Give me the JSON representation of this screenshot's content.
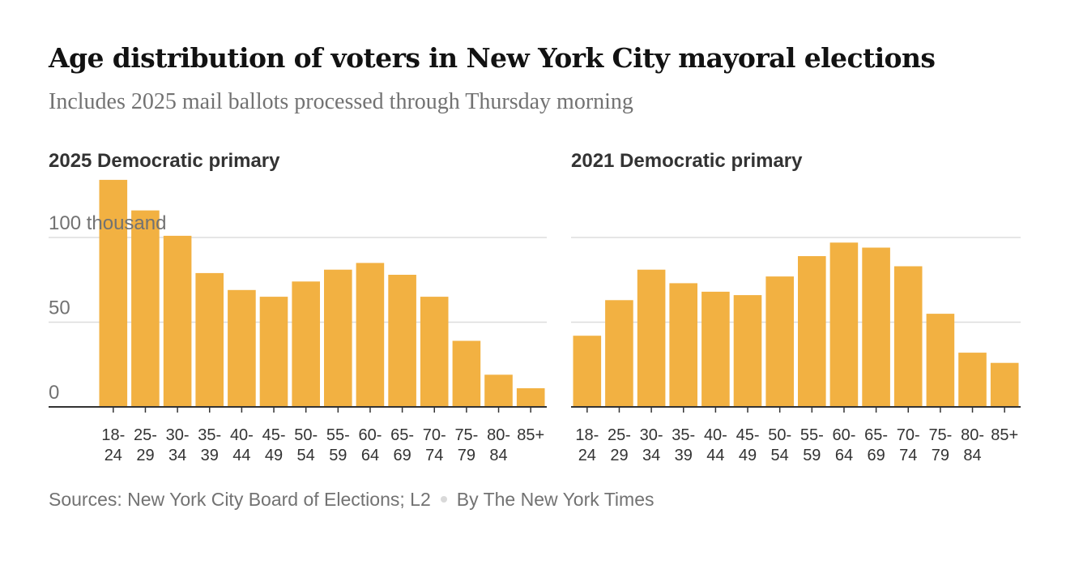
{
  "page": {
    "title": "Age distribution of voters in New York City mayoral elections",
    "subtitle": "Includes 2025 mail ballots processed through Thursday morning",
    "footer": {
      "sources": "Sources: New York City Board of Elections; L2",
      "byline": "By The New York Times"
    }
  },
  "colors": {
    "bar": "#f2b142",
    "gridline": "#dddddd",
    "axis": "#333333",
    "tick_label": "#333333",
    "y_label": "#727272"
  },
  "chart_data": [
    {
      "type": "bar",
      "title": "2025 Democratic primary",
      "categories": [
        "18-24",
        "25-29",
        "30-34",
        "35-39",
        "40-44",
        "45-49",
        "50-54",
        "55-59",
        "60-64",
        "65-69",
        "70-74",
        "75-79",
        "80-84",
        "85+"
      ],
      "category_labels": [
        [
          "18-",
          "24"
        ],
        [
          "25-",
          "29"
        ],
        [
          "30-",
          "34"
        ],
        [
          "35-",
          "39"
        ],
        [
          "40-",
          "44"
        ],
        [
          "45-",
          "49"
        ],
        [
          "50-",
          "54"
        ],
        [
          "55-",
          "59"
        ],
        [
          "60-",
          "64"
        ],
        [
          "65-",
          "69"
        ],
        [
          "70-",
          "74"
        ],
        [
          "75-",
          "79"
        ],
        [
          "80-",
          "84"
        ],
        [
          "85+",
          ""
        ]
      ],
      "values": [
        134,
        116,
        101,
        79,
        69,
        65,
        74,
        81,
        85,
        78,
        65,
        39,
        19,
        11
      ],
      "unit": "thousand",
      "ylim": [
        0,
        134
      ],
      "yticks": [
        0,
        50,
        100
      ],
      "ytick_labels": [
        "0",
        "50",
        "100 thousand"
      ],
      "grid": true
    },
    {
      "type": "bar",
      "title": "2021 Democratic primary",
      "categories": [
        "18-24",
        "25-29",
        "30-34",
        "35-39",
        "40-44",
        "45-49",
        "50-54",
        "55-59",
        "60-64",
        "65-69",
        "70-74",
        "75-79",
        "80-84",
        "85+"
      ],
      "category_labels": [
        [
          "18-",
          "24"
        ],
        [
          "25-",
          "29"
        ],
        [
          "30-",
          "34"
        ],
        [
          "35-",
          "39"
        ],
        [
          "40-",
          "44"
        ],
        [
          "45-",
          "49"
        ],
        [
          "50-",
          "54"
        ],
        [
          "55-",
          "59"
        ],
        [
          "60-",
          "64"
        ],
        [
          "65-",
          "69"
        ],
        [
          "70-",
          "74"
        ],
        [
          "75-",
          "79"
        ],
        [
          "80-",
          "84"
        ],
        [
          "85+",
          ""
        ]
      ],
      "values": [
        42,
        63,
        81,
        73,
        68,
        66,
        77,
        89,
        97,
        94,
        83,
        55,
        32,
        26
      ],
      "unit": "thousand",
      "ylim": [
        0,
        134
      ],
      "yticks": [
        0,
        50,
        100
      ],
      "grid": true
    }
  ]
}
